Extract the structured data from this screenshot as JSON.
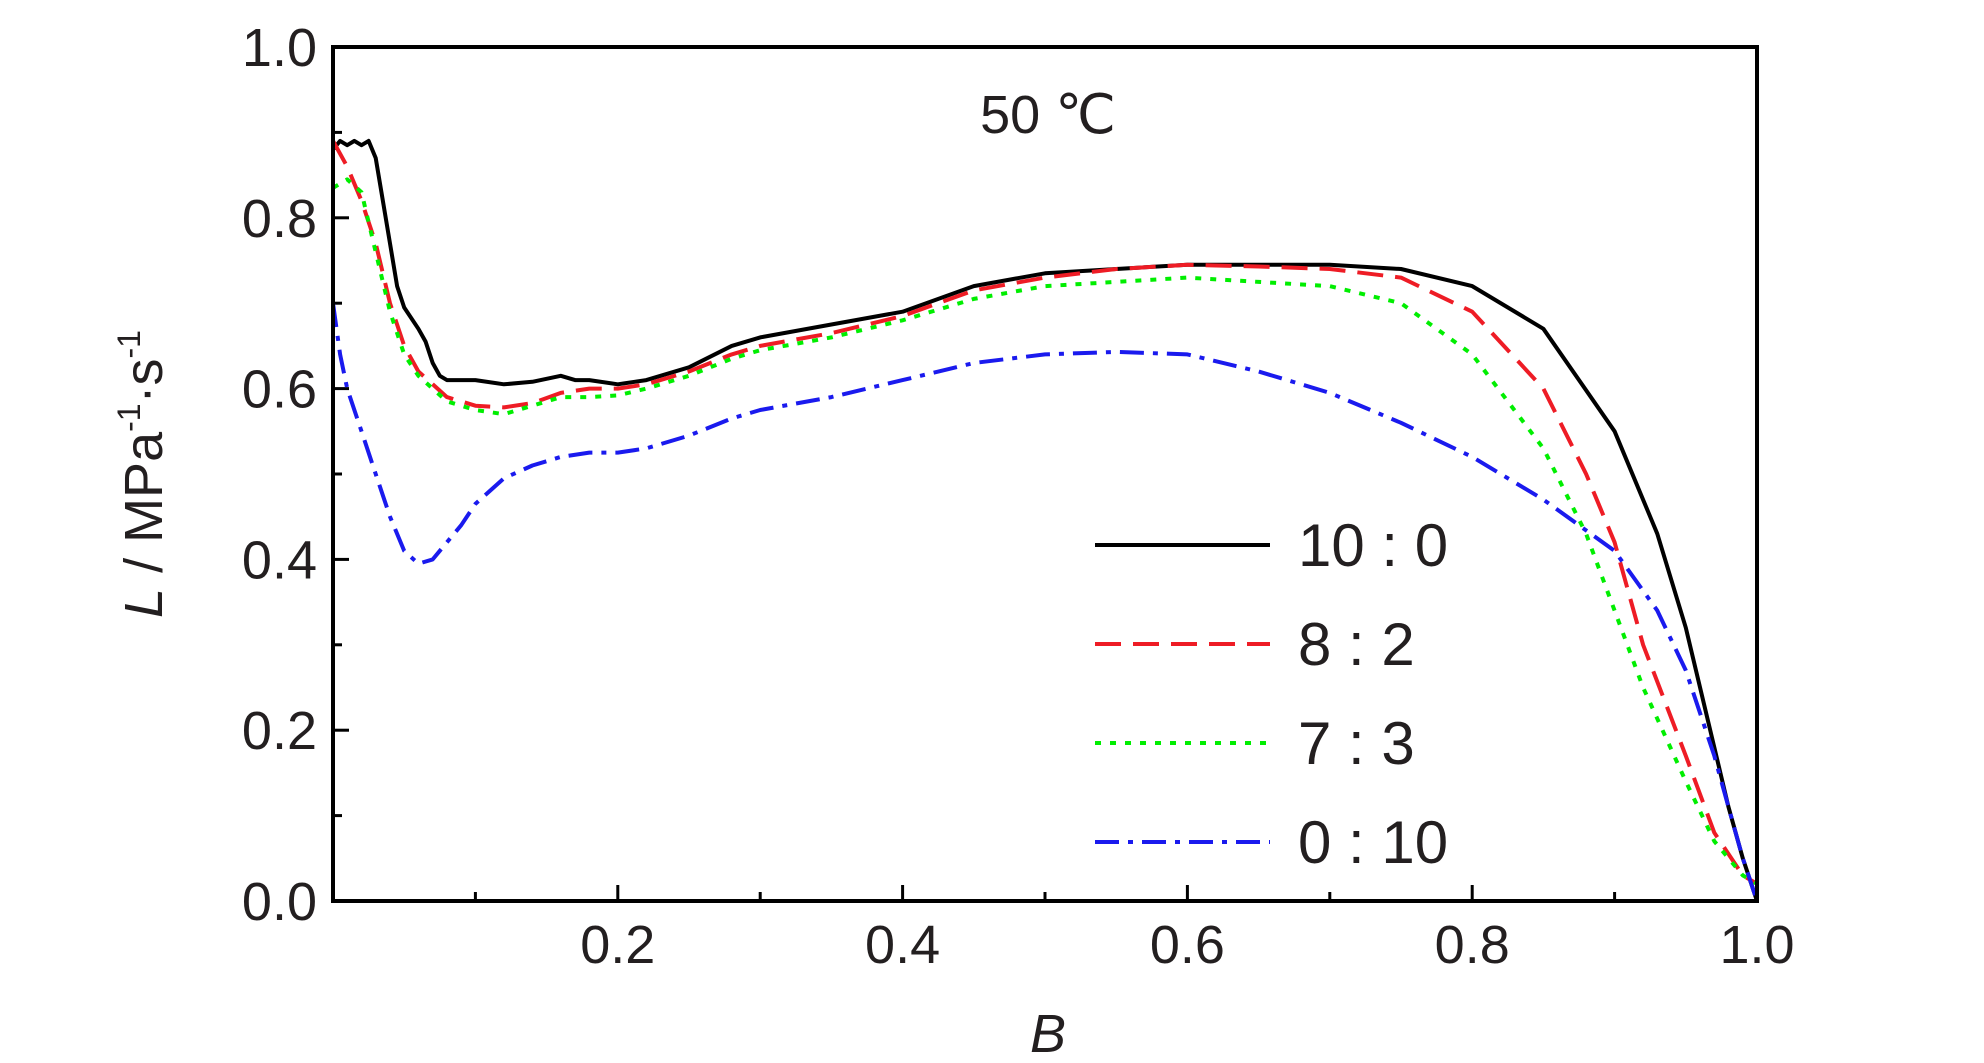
{
  "chart_data": {
    "type": "line",
    "annotation": "50 ℃",
    "xlabel": "B",
    "ylabel_var": "L",
    "ylabel_unit": " / MPa",
    "ylabel_exp1": "-1",
    "ylabel_dot": "·s",
    "ylabel_exp2": "-1",
    "xlim": [
      0,
      1.0
    ],
    "ylim": [
      0,
      1.0
    ],
    "x_ticks": [
      "0.2",
      "0.4",
      "0.6",
      "0.8",
      "1.0"
    ],
    "y_ticks": [
      "0.0",
      "0.2",
      "0.4",
      "0.6",
      "0.8",
      "1.0"
    ],
    "legend_position": "center-right",
    "series": [
      {
        "name": "10:0",
        "legend_label": "10 : 0",
        "color": "#000000",
        "dash": "solid",
        "x": [
          0.0,
          0.005,
          0.01,
          0.015,
          0.02,
          0.025,
          0.03,
          0.04,
          0.045,
          0.05,
          0.06,
          0.065,
          0.07,
          0.075,
          0.08,
          0.09,
          0.1,
          0.12,
          0.14,
          0.16,
          0.17,
          0.18,
          0.2,
          0.22,
          0.25,
          0.28,
          0.3,
          0.35,
          0.4,
          0.45,
          0.5,
          0.55,
          0.6,
          0.65,
          0.7,
          0.75,
          0.8,
          0.85,
          0.9,
          0.93,
          0.95,
          0.97,
          0.98,
          0.99,
          1.0
        ],
        "y": [
          0.88,
          0.89,
          0.885,
          0.89,
          0.885,
          0.89,
          0.87,
          0.77,
          0.72,
          0.695,
          0.67,
          0.655,
          0.63,
          0.615,
          0.61,
          0.61,
          0.61,
          0.605,
          0.608,
          0.615,
          0.61,
          0.61,
          0.605,
          0.61,
          0.625,
          0.65,
          0.66,
          0.675,
          0.69,
          0.72,
          0.735,
          0.74,
          0.745,
          0.745,
          0.745,
          0.74,
          0.72,
          0.67,
          0.55,
          0.43,
          0.32,
          0.18,
          0.11,
          0.05,
          0.0
        ]
      },
      {
        "name": "8:2",
        "legend_label": "8 : 2",
        "color": "#ee1c25",
        "dash": "dashed",
        "x": [
          0.0,
          0.01,
          0.02,
          0.03,
          0.04,
          0.05,
          0.06,
          0.07,
          0.08,
          0.1,
          0.12,
          0.14,
          0.16,
          0.18,
          0.2,
          0.22,
          0.25,
          0.28,
          0.3,
          0.35,
          0.4,
          0.45,
          0.5,
          0.55,
          0.6,
          0.65,
          0.7,
          0.75,
          0.8,
          0.85,
          0.88,
          0.9,
          0.92,
          0.95,
          0.97,
          0.99,
          1.0
        ],
        "y": [
          0.89,
          0.86,
          0.82,
          0.77,
          0.7,
          0.65,
          0.62,
          0.605,
          0.59,
          0.58,
          0.578,
          0.583,
          0.595,
          0.6,
          0.6,
          0.605,
          0.62,
          0.64,
          0.65,
          0.665,
          0.685,
          0.715,
          0.73,
          0.74,
          0.745,
          0.743,
          0.74,
          0.73,
          0.69,
          0.6,
          0.5,
          0.42,
          0.3,
          0.17,
          0.08,
          0.03,
          0.02
        ]
      },
      {
        "name": "7:3",
        "legend_label": "7 : 3",
        "color": "#00ee00",
        "dash": "dotted",
        "x": [
          0.0,
          0.01,
          0.02,
          0.03,
          0.04,
          0.05,
          0.06,
          0.07,
          0.08,
          0.1,
          0.12,
          0.14,
          0.16,
          0.18,
          0.2,
          0.22,
          0.25,
          0.28,
          0.3,
          0.35,
          0.4,
          0.45,
          0.5,
          0.55,
          0.6,
          0.65,
          0.7,
          0.75,
          0.8,
          0.85,
          0.88,
          0.9,
          0.92,
          0.95,
          0.97,
          0.99,
          1.0
        ],
        "y": [
          0.835,
          0.845,
          0.83,
          0.76,
          0.69,
          0.64,
          0.615,
          0.6,
          0.585,
          0.575,
          0.57,
          0.58,
          0.59,
          0.59,
          0.592,
          0.6,
          0.615,
          0.635,
          0.645,
          0.66,
          0.68,
          0.705,
          0.72,
          0.725,
          0.73,
          0.725,
          0.72,
          0.7,
          0.64,
          0.53,
          0.43,
          0.34,
          0.25,
          0.14,
          0.07,
          0.03,
          0.02
        ]
      },
      {
        "name": "0:10",
        "legend_label": "0 : 10",
        "color": "#1a1aee",
        "dash": "dashdot",
        "x": [
          0.0,
          0.005,
          0.01,
          0.02,
          0.03,
          0.04,
          0.05,
          0.06,
          0.07,
          0.08,
          0.09,
          0.1,
          0.12,
          0.14,
          0.16,
          0.18,
          0.2,
          0.22,
          0.25,
          0.28,
          0.3,
          0.35,
          0.4,
          0.45,
          0.5,
          0.55,
          0.6,
          0.65,
          0.7,
          0.75,
          0.8,
          0.85,
          0.9,
          0.93,
          0.95,
          0.97,
          0.98,
          0.99,
          1.0
        ],
        "y": [
          0.7,
          0.64,
          0.6,
          0.55,
          0.5,
          0.45,
          0.41,
          0.395,
          0.4,
          0.42,
          0.44,
          0.465,
          0.495,
          0.51,
          0.52,
          0.525,
          0.525,
          0.53,
          0.545,
          0.565,
          0.575,
          0.59,
          0.61,
          0.63,
          0.64,
          0.643,
          0.64,
          0.62,
          0.595,
          0.56,
          0.52,
          0.47,
          0.41,
          0.34,
          0.27,
          0.17,
          0.11,
          0.05,
          0.0
        ]
      }
    ]
  }
}
